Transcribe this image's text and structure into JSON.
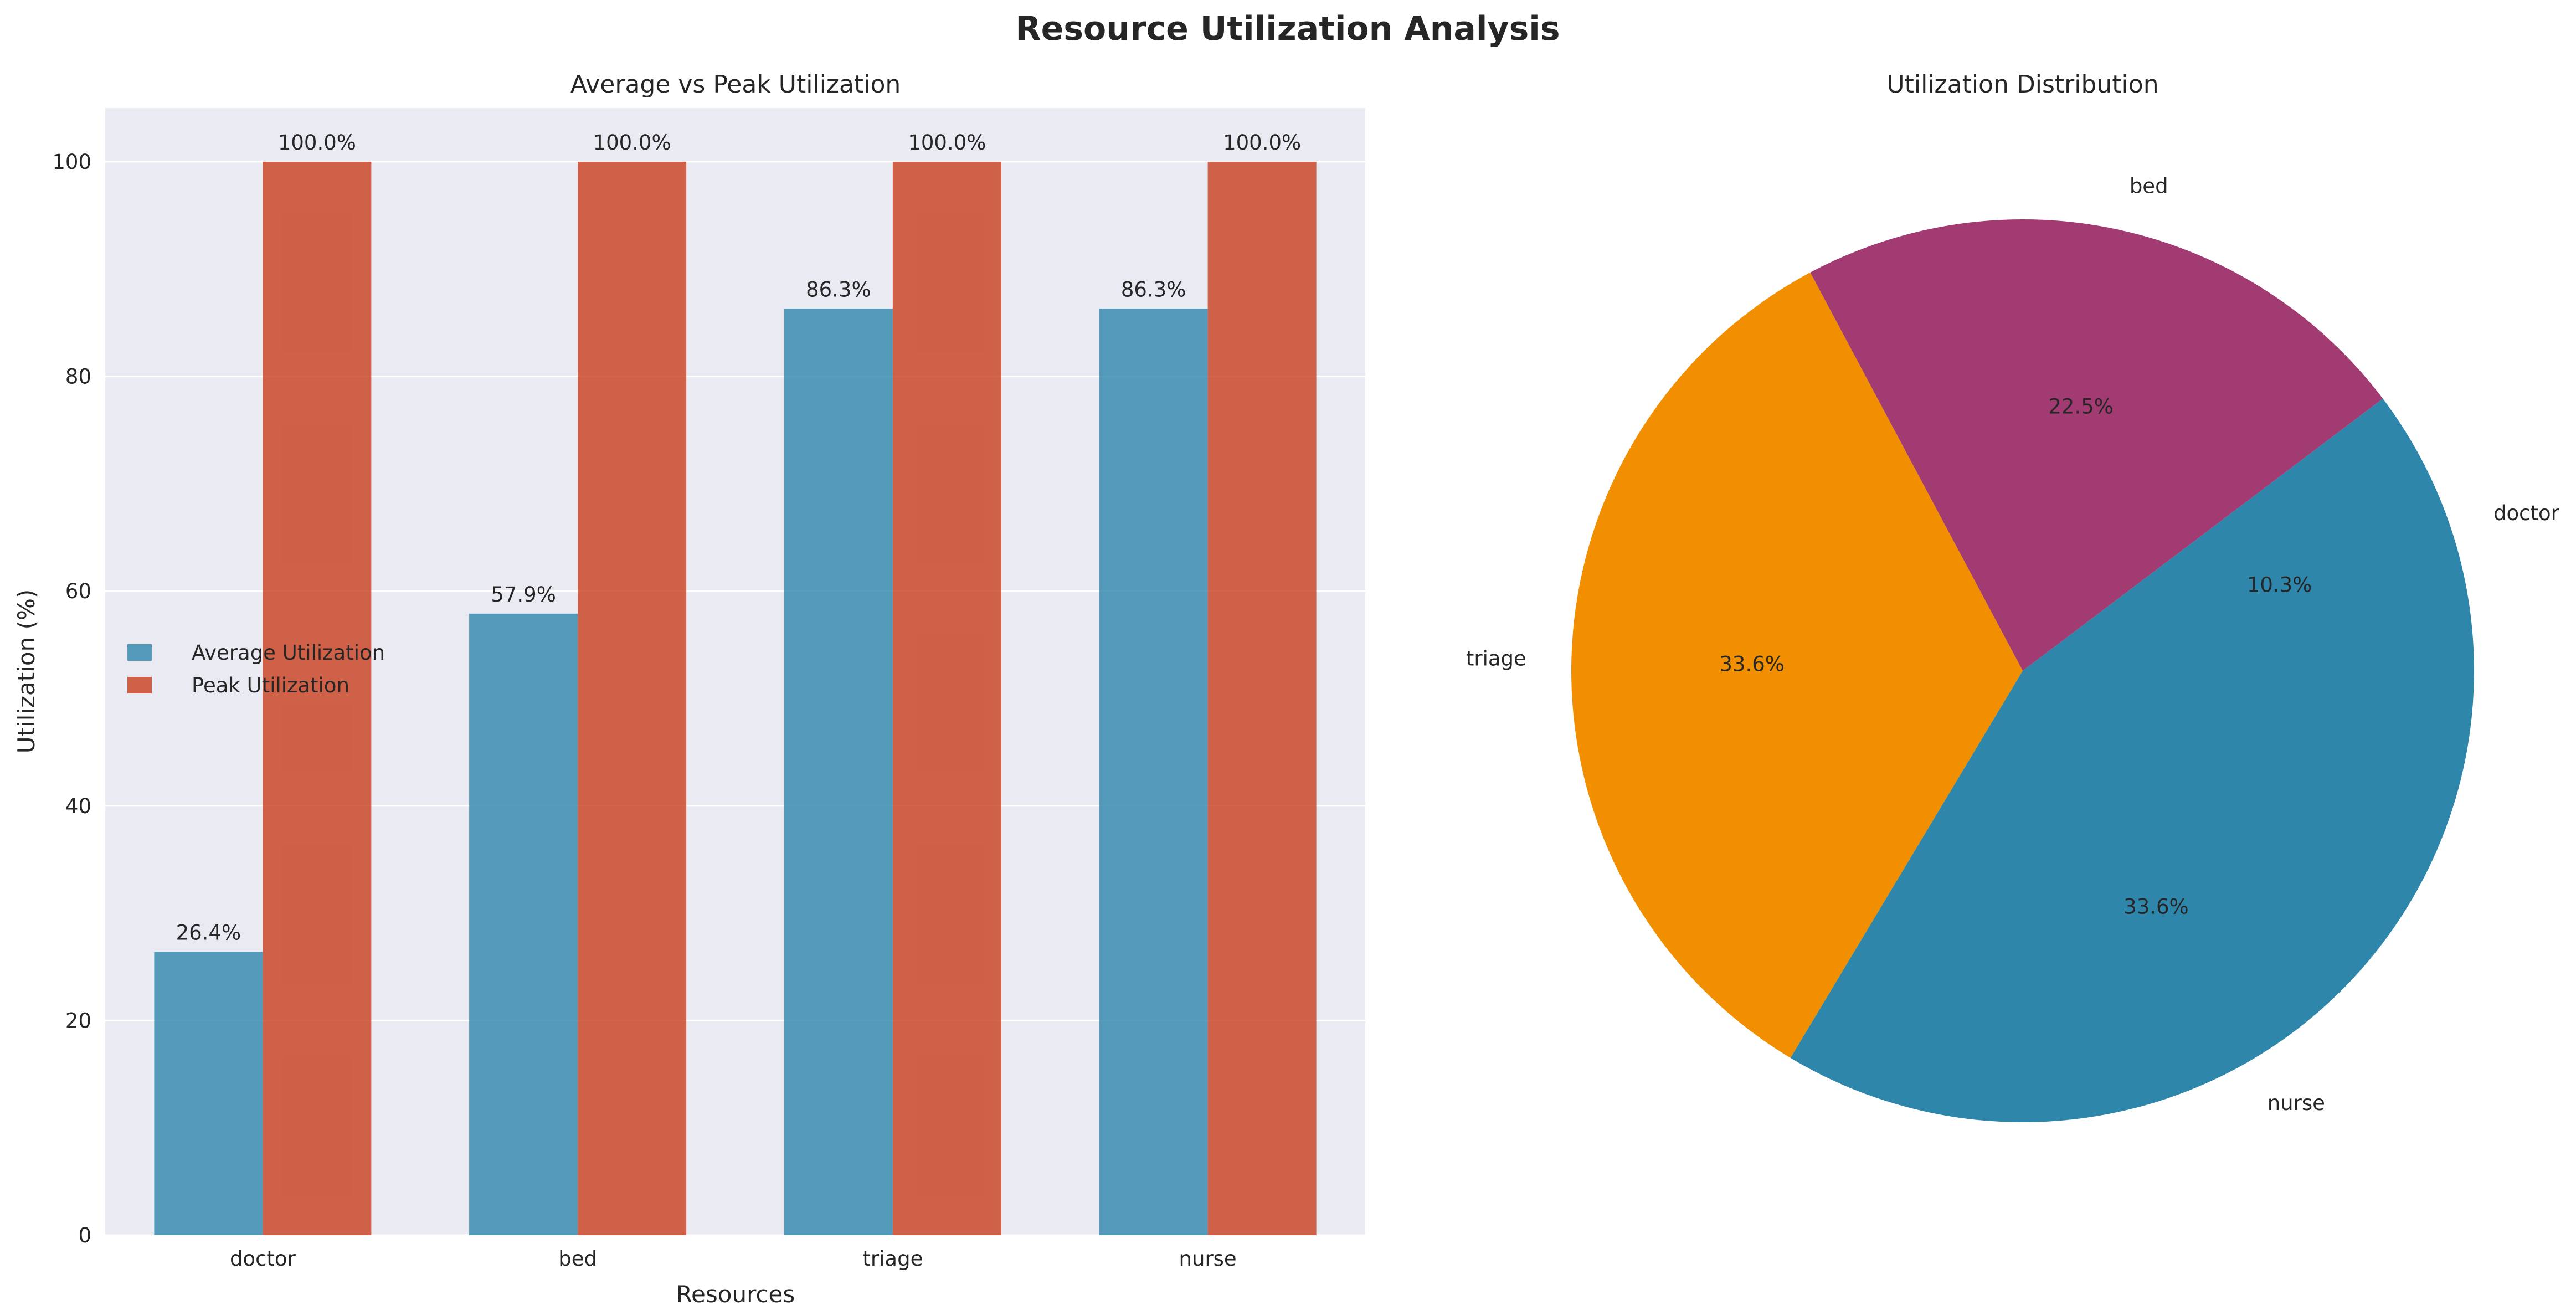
{
  "figure": {
    "title": "Resource Utilization Analysis"
  },
  "chart_data": [
    {
      "type": "bar",
      "title": "Average vs Peak Utilization",
      "xlabel": "Resources",
      "ylabel": "Utilization (%)",
      "categories": [
        "doctor",
        "bed",
        "triage",
        "nurse"
      ],
      "series": [
        {
          "name": "Average Utilization",
          "values": [
            26.4,
            57.9,
            86.3,
            86.3
          ],
          "labels": [
            "26.4%",
            "57.9%",
            "86.3%",
            "86.3%"
          ],
          "color": "#2E86AB"
        },
        {
          "name": "Peak Utilization",
          "values": [
            100.0,
            100.0,
            100.0,
            100.0
          ],
          "labels": [
            "100.0%",
            "100.0%",
            "100.0%",
            "100.0%"
          ],
          "color": "#C73E1D"
        }
      ],
      "ylim": [
        0,
        105
      ],
      "yticks": [
        0,
        20,
        40,
        60,
        80,
        100
      ],
      "grid": true,
      "legend_position": "center-left",
      "background": "#EAEAF2"
    },
    {
      "type": "pie",
      "title": "Utilization Distribution",
      "slices": [
        {
          "label": "doctor",
          "value": 10.3,
          "pct_label": "10.3%",
          "color": "#2E86AB"
        },
        {
          "label": "bed",
          "value": 22.5,
          "pct_label": "22.5%",
          "color": "#A23B72"
        },
        {
          "label": "triage",
          "value": 33.6,
          "pct_label": "33.6%",
          "color": "#F18F01"
        },
        {
          "label": "nurse",
          "value": 33.6,
          "pct_label": "33.6%",
          "color": "#2E86AB"
        }
      ]
    }
  ]
}
